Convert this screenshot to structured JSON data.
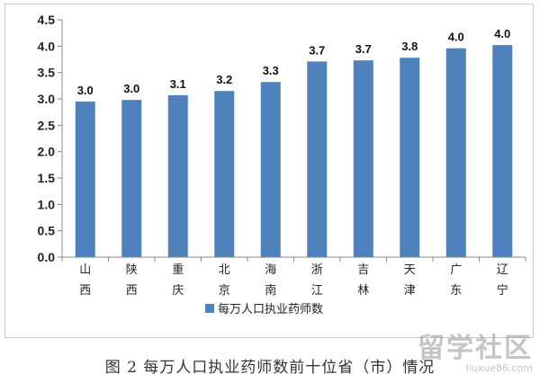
{
  "chart_data": {
    "type": "bar",
    "categories": [
      "山\n西",
      "陕\n西",
      "重\n庆",
      "北\n京",
      "海\n南",
      "浙\n江",
      "吉\n林",
      "天\n津",
      "广\n东",
      "辽\n宁"
    ],
    "series": [
      {
        "name": "每万人口执业药师数",
        "values": [
          2.95,
          2.98,
          3.07,
          3.15,
          3.32,
          3.71,
          3.73,
          3.78,
          3.96,
          4.02
        ],
        "labels": [
          "3.0",
          "3.0",
          "3.1",
          "3.2",
          "3.3",
          "3.7",
          "3.7",
          "3.8",
          "4.0",
          "4.0"
        ]
      }
    ],
    "ylim": [
      0,
      4.5
    ],
    "yticks": [
      "0.0",
      "0.5",
      "1.0",
      "1.5",
      "2.0",
      "2.5",
      "3.0",
      "3.5",
      "4.0",
      "4.5"
    ],
    "legend_position": "bottom",
    "grid": false,
    "bar_color": "#4f81bd",
    "caption": "图 2 每万人口执业药师数前十位省（市）情况"
  },
  "watermark": {
    "title": "留学社区",
    "url": "liuxue86.com"
  }
}
